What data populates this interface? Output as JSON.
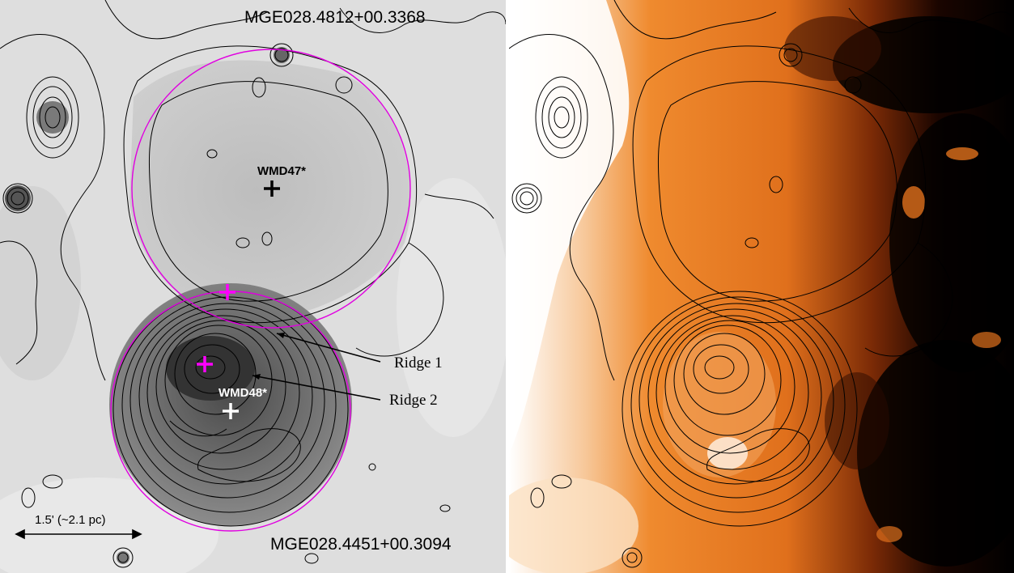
{
  "left_panel": {
    "source_top_label": "MGE028.4812+00.3368",
    "source_bottom_label": "MGE028.4451+00.3094",
    "star_label_upper": "WMD47*",
    "star_label_lower": "WMD48*",
    "ridge_1_label": "Ridge 1",
    "ridge_2_label": "Ridge 2",
    "scale_bar_label": "1.5' (~2.1 pc)"
  },
  "colors": {
    "circle": "#e000e0",
    "marker_magenta": "#ff00ff",
    "marker_white": "#ffffff",
    "marker_black": "#000000",
    "contour": "#000000",
    "greyscale_background": "#dcdcdc",
    "heat_orange": "#e8731a",
    "heat_dark": "#000000"
  },
  "icons": {
    "markers": [
      "plus-marker-magenta",
      "plus-marker-black",
      "plus-marker-white"
    ],
    "scale_bar": "double-arrow-icon"
  }
}
